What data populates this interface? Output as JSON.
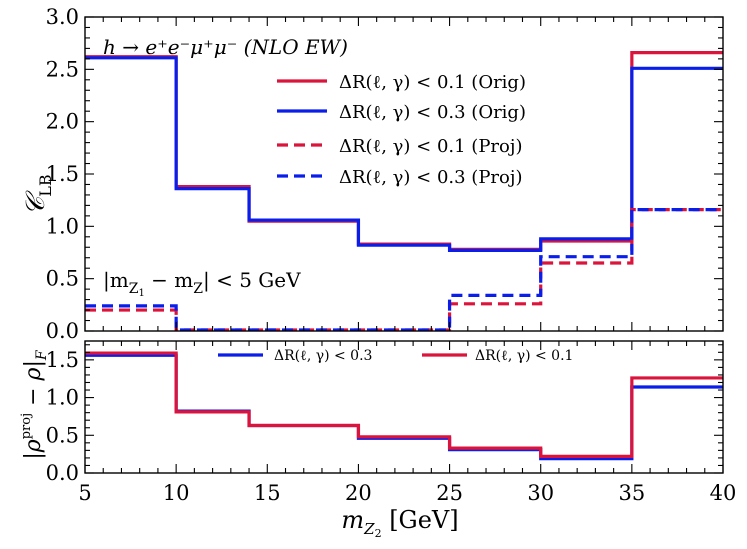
{
  "colors": {
    "red": "#dc143c",
    "blue": "#0a1eeb",
    "axis": "#000000"
  },
  "chart_data": [
    {
      "type": "line",
      "drawstyle": "steps",
      "x_edges": [
        5,
        10,
        14,
        20,
        25,
        30,
        35,
        40
      ],
      "xlim": [
        5,
        40
      ],
      "ylim": [
        0,
        3.0
      ],
      "yticks": [
        "0.0",
        "0.5",
        "1.0",
        "1.5",
        "2.0",
        "2.5",
        "3.0"
      ],
      "ylabel": "𝒞",
      "ylabel_sub": "LB",
      "annotation_title": "h → e⁺e⁻μ⁺μ⁻ (NLO EW)",
      "annotation_cut_left": "|m",
      "annotation_cut_sub1": "Z",
      "annotation_cut_sub2": "1",
      "annotation_cut_mid": " − m",
      "annotation_cut_sub3": "Z",
      "annotation_cut_right": "| < 5 GeV",
      "series": [
        {
          "name": "ΔR(ℓ, γ) < 0.1 (Orig)",
          "color": "#dc143c",
          "dashed": false,
          "values": [
            2.62,
            1.38,
            1.05,
            0.83,
            0.78,
            0.86,
            2.66
          ]
        },
        {
          "name": "ΔR(ℓ, γ) < 0.3 (Orig)",
          "color": "#0a1eeb",
          "dashed": false,
          "values": [
            2.61,
            1.36,
            1.06,
            0.82,
            0.77,
            0.88,
            2.51
          ]
        },
        {
          "name": "ΔR(ℓ, γ) < 0.1 (Proj)",
          "color": "#dc143c",
          "dashed": true,
          "values": [
            0.2,
            0.01,
            0.01,
            0.01,
            0.26,
            0.65,
            1.16
          ]
        },
        {
          "name": "ΔR(ℓ, γ) < 0.3 (Proj)",
          "color": "#0a1eeb",
          "dashed": true,
          "values": [
            0.24,
            0.01,
            0.01,
            0.01,
            0.34,
            0.71,
            1.16
          ]
        }
      ]
    },
    {
      "type": "line",
      "drawstyle": "steps",
      "x_edges": [
        5,
        10,
        14,
        20,
        25,
        30,
        35,
        40
      ],
      "xlim": [
        5,
        40
      ],
      "ylim": [
        0,
        1.75
      ],
      "yticks": [
        "0.0",
        "0.5",
        "1.0",
        "1.5"
      ],
      "xticks": [
        "5",
        "10",
        "15",
        "20",
        "25",
        "30",
        "35",
        "40"
      ],
      "xlabel": "m",
      "xlabel_sub": "Z",
      "xlabel_sub2": "2",
      "xlabel_unit": " [GeV]",
      "ylabel": "|ρ",
      "ylabel_sup": "proj",
      "ylabel_mid": " − ρ|",
      "ylabel_sub": "F",
      "series": [
        {
          "name": "ΔR(ℓ, γ) < 0.3",
          "color": "#0a1eeb",
          "dashed": false,
          "values": [
            1.56,
            0.82,
            0.63,
            0.46,
            0.31,
            0.19,
            1.14
          ]
        },
        {
          "name": "ΔR(ℓ, γ) < 0.1",
          "color": "#dc143c",
          "dashed": false,
          "values": [
            1.59,
            0.81,
            0.63,
            0.48,
            0.33,
            0.22,
            1.26
          ]
        }
      ]
    }
  ]
}
